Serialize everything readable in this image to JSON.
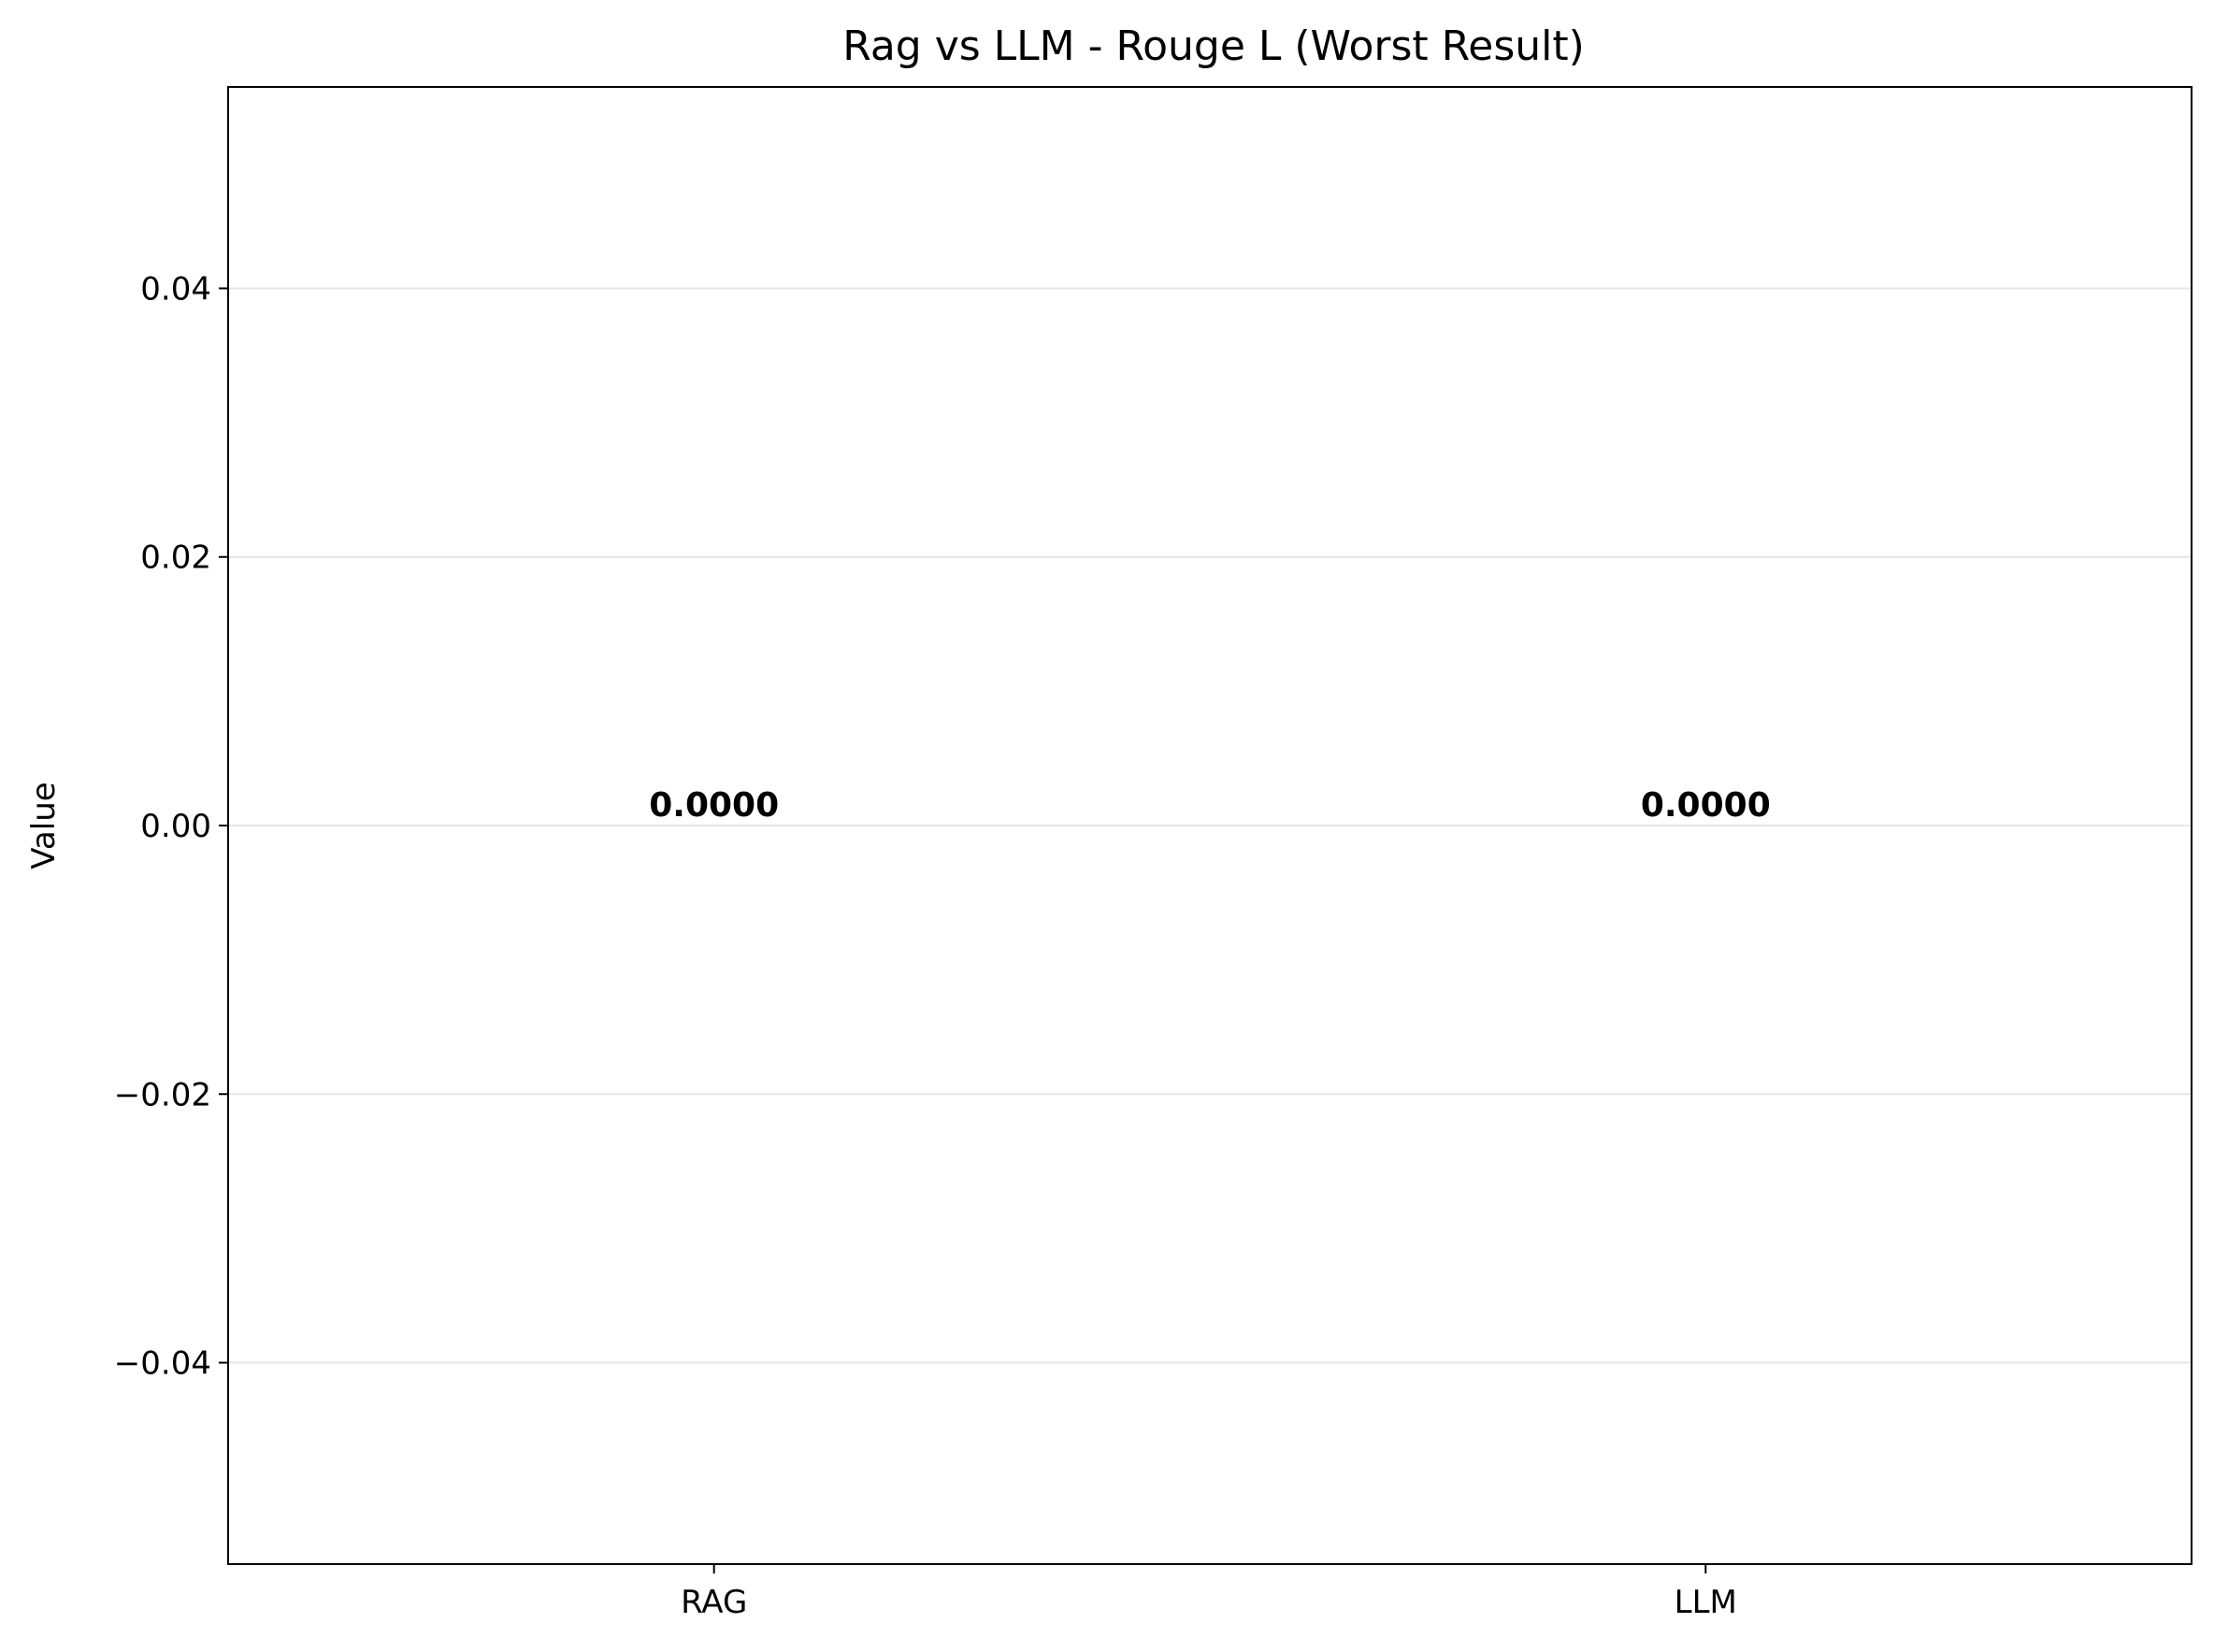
{
  "chart_data": {
    "type": "bar",
    "title": "Rag vs LLM - Rouge L (Worst Result)",
    "xlabel": "",
    "ylabel": "Value",
    "categories": [
      "RAG",
      "LLM"
    ],
    "values": [
      0.0,
      0.0
    ],
    "data_labels": [
      "0.0000",
      "0.0000"
    ],
    "ylim": [
      -0.055,
      0.055
    ],
    "yticks": [
      -0.04,
      -0.02,
      0.0,
      0.02,
      0.04
    ],
    "ytick_labels": [
      "−0.04",
      "−0.02",
      "0.00",
      "0.02",
      "0.04"
    ],
    "grid": "y",
    "grid_color": "#e6e6e6",
    "axis_color": "#000000"
  }
}
